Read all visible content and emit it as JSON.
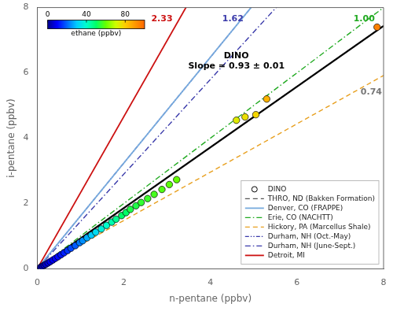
{
  "chart_data": {
    "type": "scatter",
    "xlabel": "n-pentane (ppbv)",
    "ylabel": "i-pentane (ppbv)",
    "xlim": [
      0,
      8
    ],
    "ylim": [
      0,
      8
    ],
    "xticks": [
      0,
      2,
      4,
      6,
      8
    ],
    "yticks": [
      0,
      2,
      4,
      6,
      8
    ],
    "grid": false,
    "legend": "lower right",
    "series": [
      {
        "name": "DINO",
        "type": "scatter",
        "marker": "circle",
        "color": "#000000",
        "x": [
          0.08,
          0.12,
          0.16,
          0.2,
          0.25,
          0.3,
          0.36,
          0.42,
          0.48,
          0.55,
          0.62,
          0.7,
          0.78,
          0.88,
          0.98,
          1.05,
          1.15,
          1.25,
          1.35,
          1.48,
          1.6,
          1.72,
          1.82,
          1.95,
          2.05,
          2.15,
          2.28,
          2.4,
          2.55,
          2.7,
          2.88,
          3.05,
          3.22,
          4.6,
          4.8,
          5.05,
          5.3,
          7.85
        ],
        "values": [
          0.05,
          0.08,
          0.11,
          0.14,
          0.18,
          0.22,
          0.27,
          0.32,
          0.37,
          0.43,
          0.49,
          0.56,
          0.63,
          0.71,
          0.8,
          0.86,
          0.95,
          1.03,
          1.12,
          1.22,
          1.33,
          1.43,
          1.52,
          1.63,
          1.72,
          1.82,
          1.93,
          2.03,
          2.15,
          2.28,
          2.43,
          2.58,
          2.73,
          4.55,
          4.65,
          4.72,
          5.2,
          7.4
        ],
        "ethane": [
          3,
          4,
          5,
          6,
          7,
          8,
          9,
          10,
          11,
          12,
          13,
          15,
          17,
          19,
          22,
          24,
          27,
          30,
          33,
          37,
          40,
          43,
          46,
          50,
          50,
          53,
          53,
          55,
          56,
          57,
          58,
          59,
          60,
          74,
          76,
          78,
          85,
          95
        ],
        "fit_slope": 0.93
      },
      {
        "name": "THRO, ND (Bakken Formation)",
        "type": "line",
        "slope": 0.93,
        "color": "#555555",
        "line_style": "dashed"
      },
      {
        "name": "Denver, CO (FRAPPE)",
        "type": "line",
        "slope": 1.62,
        "color": "#77aadd",
        "line_style": "solid"
      },
      {
        "name": "Erie, CO (NACHTT)",
        "type": "line",
        "slope": 1.0,
        "color": "#22aa22",
        "line_style": "dashdot"
      },
      {
        "name": "Hickory, PA (Marcellus Shale)",
        "type": "line",
        "slope": 0.74,
        "color": "#E8A020",
        "line_style": "dashed"
      },
      {
        "name": "Durham, NH (Oct.-May)",
        "type": "line",
        "slope": 1.62,
        "color": "#3a3aaa",
        "line_style": "dashdotdot"
      },
      {
        "name": "Durham, NH (June-Sept.)",
        "type": "line",
        "slope": 1.45,
        "color": "#3a3aaa",
        "line_style": "dashdot"
      },
      {
        "name": "Detroit, MI",
        "type": "line",
        "slope": 2.33,
        "color": "#cc1111",
        "line_style": "solid"
      }
    ],
    "annotations": [
      {
        "text": "2.33",
        "x": 2.88,
        "y": 7.78,
        "color": "#cc1111"
      },
      {
        "text": "1.62",
        "x": 4.52,
        "y": 7.78,
        "color": "#3a3aaa"
      },
      {
        "text": "1.00",
        "x": 7.55,
        "y": 7.78,
        "color": "#22aa22"
      },
      {
        "text": "0.74",
        "x": 7.78,
        "y": 5.55,
        "color": "#777777"
      },
      {
        "text": "DINO\nSlope = 0.93 ± 0.01",
        "x": 4.6,
        "y": 6.65,
        "color": "#000000"
      }
    ],
    "colorbar": {
      "label": "ethane (ppbv)",
      "range": [
        0,
        100
      ],
      "ticks": [
        0,
        40,
        80
      ]
    }
  }
}
